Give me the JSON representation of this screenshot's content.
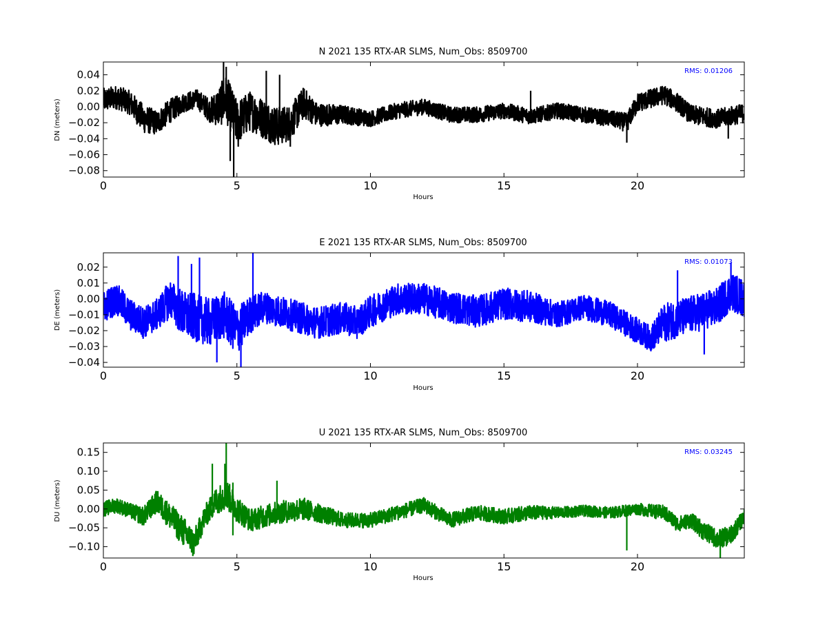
{
  "chart_data": [
    {
      "type": "line",
      "title": "N 2021 135 RTX-AR  SLMS, Num_Obs: 8509700",
      "xlabel": "Hours",
      "ylabel": "DN (meters)",
      "xlim": [
        0,
        24
      ],
      "ylim": [
        -0.088,
        0.056
      ],
      "xticks": [
        0,
        5,
        10,
        15,
        20
      ],
      "xtick_labels": [
        "0",
        "5",
        "10",
        "15",
        "20"
      ],
      "yticks": [
        -0.08,
        -0.06,
        -0.04,
        -0.02,
        0.0,
        0.02,
        0.04
      ],
      "ytick_labels": [
        "−0.08",
        "−0.06",
        "−0.04",
        "−0.02",
        "0.00",
        "0.02",
        "0.04"
      ],
      "annotation": "RMS:  0.01206",
      "color": "#000000",
      "series": [
        {
          "x": [
            0,
            0.5,
            1.0,
            1.5,
            2.0,
            2.5,
            3.0,
            3.5,
            4.0,
            4.3,
            4.6,
            5.0,
            5.5,
            6.0,
            6.5,
            7.0,
            7.5,
            8.0,
            9.0,
            10.0,
            11.0,
            12.0,
            13.0,
            14.0,
            15.0,
            16.0,
            17.0,
            18.0,
            19.0,
            19.6,
            20.0,
            20.5,
            21.0,
            21.5,
            22.0,
            23.0,
            24.0
          ],
          "y": [
            0.008,
            0.012,
            0.005,
            -0.015,
            -0.02,
            -0.005,
            0.005,
            0.01,
            -0.005,
            0.0,
            0.01,
            -0.02,
            -0.005,
            -0.015,
            -0.025,
            -0.02,
            0.005,
            -0.01,
            -0.01,
            -0.015,
            -0.005,
            0.0,
            -0.01,
            -0.01,
            -0.005,
            -0.012,
            -0.005,
            -0.01,
            -0.015,
            -0.02,
            0.005,
            0.01,
            0.015,
            0.005,
            -0.01,
            -0.015,
            -0.008
          ],
          "band": [
            0.015,
            0.015,
            0.015,
            0.018,
            0.015,
            0.015,
            0.012,
            0.012,
            0.015,
            0.025,
            0.03,
            0.028,
            0.025,
            0.025,
            0.025,
            0.022,
            0.02,
            0.015,
            0.012,
            0.01,
            0.01,
            0.01,
            0.01,
            0.01,
            0.01,
            0.01,
            0.01,
            0.01,
            0.01,
            0.012,
            0.012,
            0.012,
            0.012,
            0.012,
            0.012,
            0.012,
            0.012
          ],
          "spikes": [
            [
              4.5,
              0.056
            ],
            [
              4.6,
              0.05
            ],
            [
              4.75,
              -0.068
            ],
            [
              4.88,
              -0.088
            ],
            [
              5.05,
              -0.05
            ],
            [
              6.1,
              0.045
            ],
            [
              6.6,
              0.04
            ],
            [
              7.0,
              -0.05
            ],
            [
              16.0,
              0.02
            ],
            [
              19.6,
              -0.045
            ],
            [
              23.4,
              -0.04
            ]
          ]
        }
      ]
    },
    {
      "type": "line",
      "title": "E 2021 135 RTX-AR  SLMS, Num_Obs: 8509700",
      "xlabel": "Hours",
      "ylabel": "DE (meters)",
      "xlim": [
        0,
        24
      ],
      "ylim": [
        -0.043,
        0.029
      ],
      "xticks": [
        0,
        5,
        10,
        15,
        20
      ],
      "xtick_labels": [
        "0",
        "5",
        "10",
        "15",
        "20"
      ],
      "yticks": [
        -0.04,
        -0.03,
        -0.02,
        -0.01,
        0.0,
        0.01,
        0.02
      ],
      "ytick_labels": [
        "−0.04",
        "−0.03",
        "−0.02",
        "−0.01",
        "0.00",
        "0.01",
        "0.02"
      ],
      "annotation": "RMS:  0.01073",
      "color": "#0000ff",
      "series": [
        {
          "x": [
            0,
            0.5,
            1.0,
            1.5,
            2.0,
            2.5,
            3.0,
            3.5,
            4.0,
            4.5,
            5.0,
            5.5,
            6.0,
            7.0,
            8.0,
            9.0,
            9.5,
            10.0,
            11.0,
            12.0,
            13.0,
            14.0,
            15.0,
            16.0,
            17.0,
            18.0,
            19.0,
            20.0,
            20.5,
            21.0,
            22.0,
            23.0,
            23.5,
            24.0
          ],
          "y": [
            -0.005,
            0.0,
            -0.01,
            -0.015,
            -0.01,
            0.0,
            -0.01,
            -0.012,
            -0.015,
            -0.01,
            -0.02,
            -0.01,
            -0.005,
            -0.01,
            -0.015,
            -0.012,
            -0.015,
            -0.008,
            0.0,
            0.0,
            -0.005,
            -0.008,
            -0.003,
            -0.005,
            -0.01,
            -0.005,
            -0.01,
            -0.02,
            -0.025,
            -0.015,
            -0.01,
            -0.005,
            0.005,
            0.0
          ],
          "band": [
            0.01,
            0.01,
            0.01,
            0.01,
            0.01,
            0.012,
            0.015,
            0.015,
            0.015,
            0.015,
            0.015,
            0.012,
            0.01,
            0.01,
            0.01,
            0.01,
            0.01,
            0.01,
            0.01,
            0.01,
            0.01,
            0.01,
            0.01,
            0.01,
            0.008,
            0.008,
            0.008,
            0.008,
            0.008,
            0.012,
            0.012,
            0.012,
            0.012,
            0.012
          ],
          "spikes": [
            [
              2.8,
              0.027
            ],
            [
              3.3,
              0.022
            ],
            [
              3.6,
              0.026
            ],
            [
              5.6,
              0.029
            ],
            [
              5.15,
              -0.043
            ],
            [
              4.25,
              -0.04
            ],
            [
              21.5,
              0.018
            ],
            [
              23.5,
              0.023
            ],
            [
              22.5,
              -0.035
            ]
          ]
        }
      ]
    },
    {
      "type": "line",
      "title": "U 2021 135 RTX-AR  SLMS, Num_Obs: 8509700",
      "xlabel": "Hours",
      "ylabel": "DU (meters)",
      "xlim": [
        0,
        24
      ],
      "ylim": [
        -0.13,
        0.175
      ],
      "xticks": [
        0,
        5,
        10,
        15,
        20
      ],
      "xtick_labels": [
        "0",
        "5",
        "10",
        "15",
        "20"
      ],
      "yticks": [
        -0.1,
        -0.05,
        0.0,
        0.05,
        0.1,
        0.15
      ],
      "ytick_labels": [
        "−0.10",
        "−0.05",
        "0.00",
        "0.05",
        "0.10",
        "0.15"
      ],
      "annotation": "RMS:  0.03245",
      "color": "#008000",
      "series": [
        {
          "x": [
            0,
            0.5,
            1.0,
            1.5,
            2.0,
            2.5,
            3.0,
            3.4,
            3.8,
            4.2,
            4.6,
            5.0,
            5.5,
            6.0,
            6.5,
            7.0,
            7.5,
            8.0,
            9.0,
            10.0,
            11.0,
            12.0,
            13.0,
            14.0,
            15.0,
            16.0,
            17.0,
            18.0,
            19.0,
            20.0,
            21.0,
            21.5,
            22.0,
            22.5,
            23.0,
            23.5,
            24.0
          ],
          "y": [
            0.0,
            0.01,
            -0.005,
            -0.02,
            0.02,
            -0.02,
            -0.06,
            -0.09,
            -0.02,
            0.02,
            0.04,
            0.0,
            -0.03,
            -0.02,
            -0.01,
            -0.005,
            0.0,
            -0.01,
            -0.03,
            -0.03,
            -0.01,
            0.01,
            -0.03,
            -0.01,
            -0.02,
            -0.01,
            -0.01,
            -0.005,
            -0.01,
            0.0,
            -0.01,
            -0.04,
            -0.03,
            -0.06,
            -0.08,
            -0.07,
            -0.02
          ],
          "band": [
            0.02,
            0.02,
            0.02,
            0.025,
            0.03,
            0.035,
            0.04,
            0.035,
            0.03,
            0.035,
            0.04,
            0.035,
            0.03,
            0.03,
            0.03,
            0.03,
            0.03,
            0.025,
            0.02,
            0.02,
            0.02,
            0.02,
            0.02,
            0.02,
            0.02,
            0.02,
            0.015,
            0.015,
            0.015,
            0.015,
            0.02,
            0.02,
            0.02,
            0.025,
            0.025,
            0.025,
            0.02
          ],
          "spikes": [
            [
              4.6,
              0.175
            ],
            [
              4.55,
              0.12
            ],
            [
              4.08,
              0.12
            ],
            [
              4.85,
              0.07
            ],
            [
              6.5,
              0.075
            ],
            [
              4.85,
              -0.07
            ],
            [
              3.35,
              -0.125
            ],
            [
              19.6,
              -0.11
            ],
            [
              23.1,
              -0.13
            ]
          ]
        }
      ]
    }
  ]
}
